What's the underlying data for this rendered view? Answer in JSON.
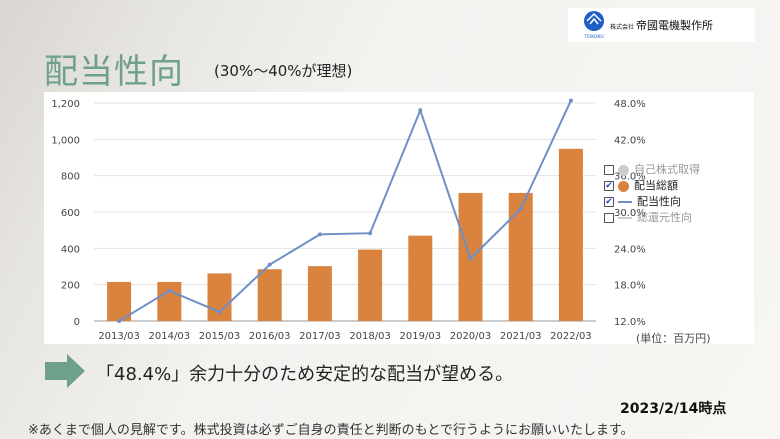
{
  "logo": {
    "company": "帝國電機製作所",
    "prefix": "株式会社",
    "mark": "TEIKOKU"
  },
  "title": "配当性向",
  "subtitle": "(30%〜40%が理想)",
  "caption": "「48.4%」余力十分のため安定的な配当が望める。",
  "date": "2023/2/14時点",
  "disclaimer": "※あくまで個人の見解です。株式投資は必ずご自身の責任と判断のもとで行うようにお願いいたします。",
  "unit_label": "(単位：百万円)",
  "legend": [
    {
      "label": "自己株式取得",
      "checked": false,
      "color": "#cccccc",
      "kind": "dot"
    },
    {
      "label": "配当総額",
      "checked": true,
      "color": "#d9833f",
      "kind": "dot"
    },
    {
      "label": "配当性向",
      "checked": true,
      "color": "#6f8fc8",
      "kind": "line"
    },
    {
      "label": "総還元性向",
      "checked": false,
      "color": "#cccccc",
      "kind": "line"
    }
  ],
  "chart_data": {
    "type": "bar",
    "categories": [
      "2013/03",
      "2014/03",
      "2015/03",
      "2016/03",
      "2017/03",
      "2018/03",
      "2019/03",
      "2020/03",
      "2021/03",
      "2022/03"
    ],
    "series": [
      {
        "name": "配当総額",
        "axis": "left",
        "type": "bar",
        "color": "#d9833f",
        "values": [
          215,
          215,
          262,
          285,
          302,
          393,
          470,
          705,
          705,
          948
        ]
      },
      {
        "name": "配当性向",
        "axis": "right",
        "type": "line",
        "color": "#6f8fc8",
        "values": [
          12.0,
          17.0,
          13.5,
          21.3,
          26.3,
          26.5,
          46.8,
          22.3,
          30.5,
          48.4
        ]
      }
    ],
    "left_axis": {
      "ylim": [
        0,
        1200
      ],
      "ticks": [
        "0",
        "200",
        "400",
        "600",
        "800",
        "1,000",
        "1,200"
      ]
    },
    "right_axis": {
      "ylim": [
        12.0,
        48.0
      ],
      "ticks": [
        "12.0%",
        "18.0%",
        "24.0%",
        "30.0%",
        "36.0%",
        "42.0%",
        "48.0%"
      ]
    },
    "grid": true,
    "legend_position": "right"
  }
}
